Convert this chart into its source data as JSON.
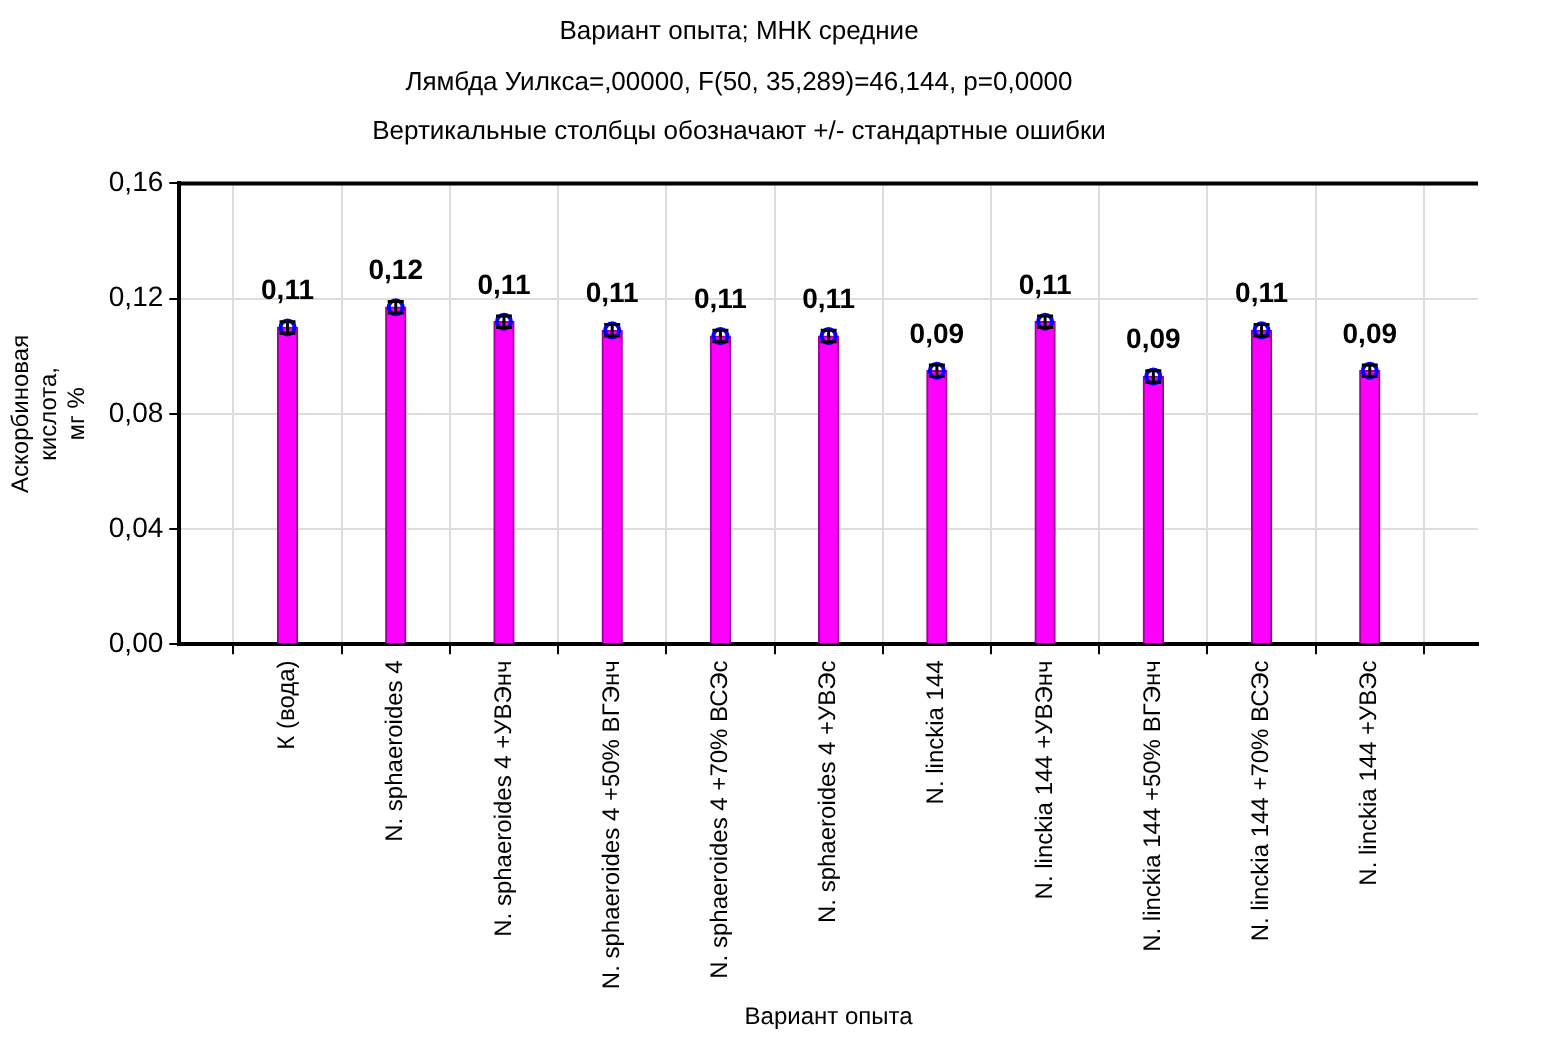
{
  "chart_data": {
    "type": "bar",
    "title": "Вариант опыта; МНК средние",
    "subtitle": "Лямбда Уилкса=,00000, F(50, 35,289)=46,144, p=0,0000",
    "annotations": [
      "Вертикальные столбцы обозначают +/- стандартные ошибки"
    ],
    "xlabel": "Вариант опыта",
    "ylabel": "Аскорбиновая кислота, мг %",
    "categories": [
      null,
      "К (вода)",
      "N. sphaeroides 4",
      "N. sphaeroides 4 +УВЭнч",
      "N. sphaeroides 4 +50% ВГЭнч",
      "N. sphaeroides 4 +70% ВСЭс",
      "N. sphaeroides 4 +УВЭс",
      "N. linckia 144",
      "N. linckia 144 +УВЭнч",
      "N. linckia 144 +50% ВГЭнч",
      "N. linckia 144 +70% ВСЭс",
      "N. linckia 144 +УВЭс",
      null
    ],
    "series": [
      {
        "color": "#ff00ff",
        "values": [
          null,
          0.11,
          0.117,
          0.112,
          0.109,
          0.107,
          0.107,
          0.095,
          0.112,
          0.093,
          0.109,
          0.095,
          null
        ],
        "errors": [
          null,
          0.002,
          0.002,
          0.002,
          0.002,
          0.002,
          0.002,
          0.002,
          0.002,
          0.002,
          0.002,
          0.002,
          null
        ],
        "value_labels": [
          null,
          "0,11",
          "0,12",
          "0,11",
          "0,11",
          "0,11",
          "0,11",
          "0,09",
          "0,11",
          "0,09",
          "0,11",
          "0,09",
          null
        ]
      },
      {
        "type": "scatter",
        "color": "#0000ff",
        "marker": "circle",
        "x": [
          "К (вода)",
          "N. sphaeroides 4",
          "N. sphaeroides 4 +УВЭнч",
          "N. sphaeroides 4 +50% ВГЭнч",
          "N. sphaeroides 4 +70% ВСЭс",
          "N. sphaeroides 4 +УВЭс",
          "N. linckia 144",
          "N. linckia 144 +УВЭнч",
          "N. linckia 144 +50% ВГЭнч",
          "N. linckia 144 +70% ВСЭс",
          "N. linckia 144 +УВЭс"
        ],
        "values": [
          0.11,
          0.117,
          0.112,
          0.109,
          0.107,
          0.107,
          0.095,
          0.112,
          0.093,
          0.109,
          0.095
        ]
      }
    ],
    "ylim": [
      0,
      0.16
    ],
    "yticks": [
      {
        "value": 0,
        "label": "0,00"
      },
      {
        "value": 0.04,
        "label": "0,04"
      },
      {
        "value": 0.08,
        "label": "0,08"
      },
      {
        "value": 0.12,
        "label": "0,12"
      },
      {
        "value": 0.16,
        "label": "0,16"
      }
    ],
    "grid": true,
    "legend": false
  }
}
